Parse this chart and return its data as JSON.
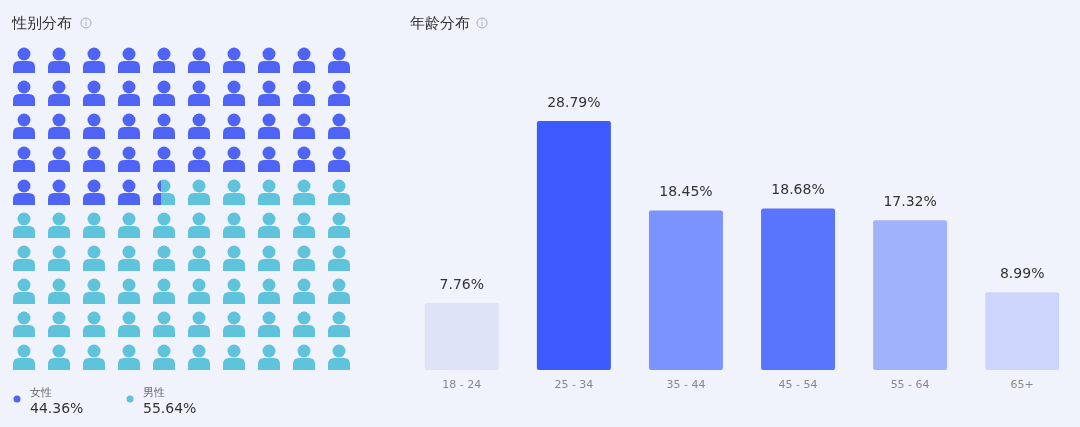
{
  "chart_data": [
    {
      "type": "other",
      "title": "性别分布",
      "categories": [
        "女性",
        "男性"
      ],
      "values": [
        44.36,
        55.64
      ],
      "value_labels": [
        "44.36%",
        "55.64%"
      ],
      "colors": [
        "#4f64f5",
        "#5fc3dc"
      ]
    },
    {
      "type": "bar",
      "title": "年龄分布",
      "categories": [
        "18 - 24",
        "25 - 34",
        "35 - 44",
        "45 - 54",
        "55 - 64",
        "65+"
      ],
      "values": [
        7.76,
        28.79,
        18.45,
        18.68,
        17.32,
        8.99
      ],
      "value_labels": [
        "7.76%",
        "28.79%",
        "18.45%",
        "18.68%",
        "17.32%",
        "8.99%"
      ],
      "colors": [
        "#dfe3f8",
        "#3d5afe",
        "#7b93fc",
        "#5a75fd",
        "#a1b2fd",
        "#ccd5fb"
      ]
    }
  ]
}
